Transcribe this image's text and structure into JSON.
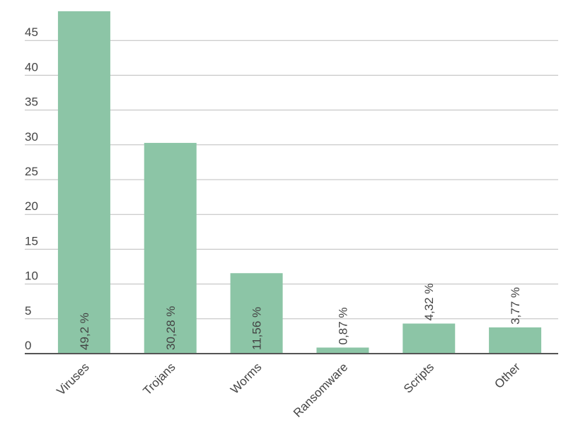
{
  "chart_data": {
    "type": "bar",
    "categories": [
      "Viruses",
      "Trojans",
      "Worms",
      "Ransomware",
      "Scripts",
      "Other"
    ],
    "values": [
      49.2,
      30.28,
      11.56,
      0.87,
      4.32,
      3.77
    ],
    "value_labels": [
      "49,2 %",
      "30,28 %",
      "11,56 %",
      "0,87 %",
      "4,32 %",
      "3,77 %"
    ],
    "color": "#8cc5a6",
    "ylim": [
      0,
      50
    ],
    "yticks": [
      0,
      5,
      10,
      15,
      20,
      25,
      30,
      35,
      40,
      45
    ],
    "grid": true
  }
}
